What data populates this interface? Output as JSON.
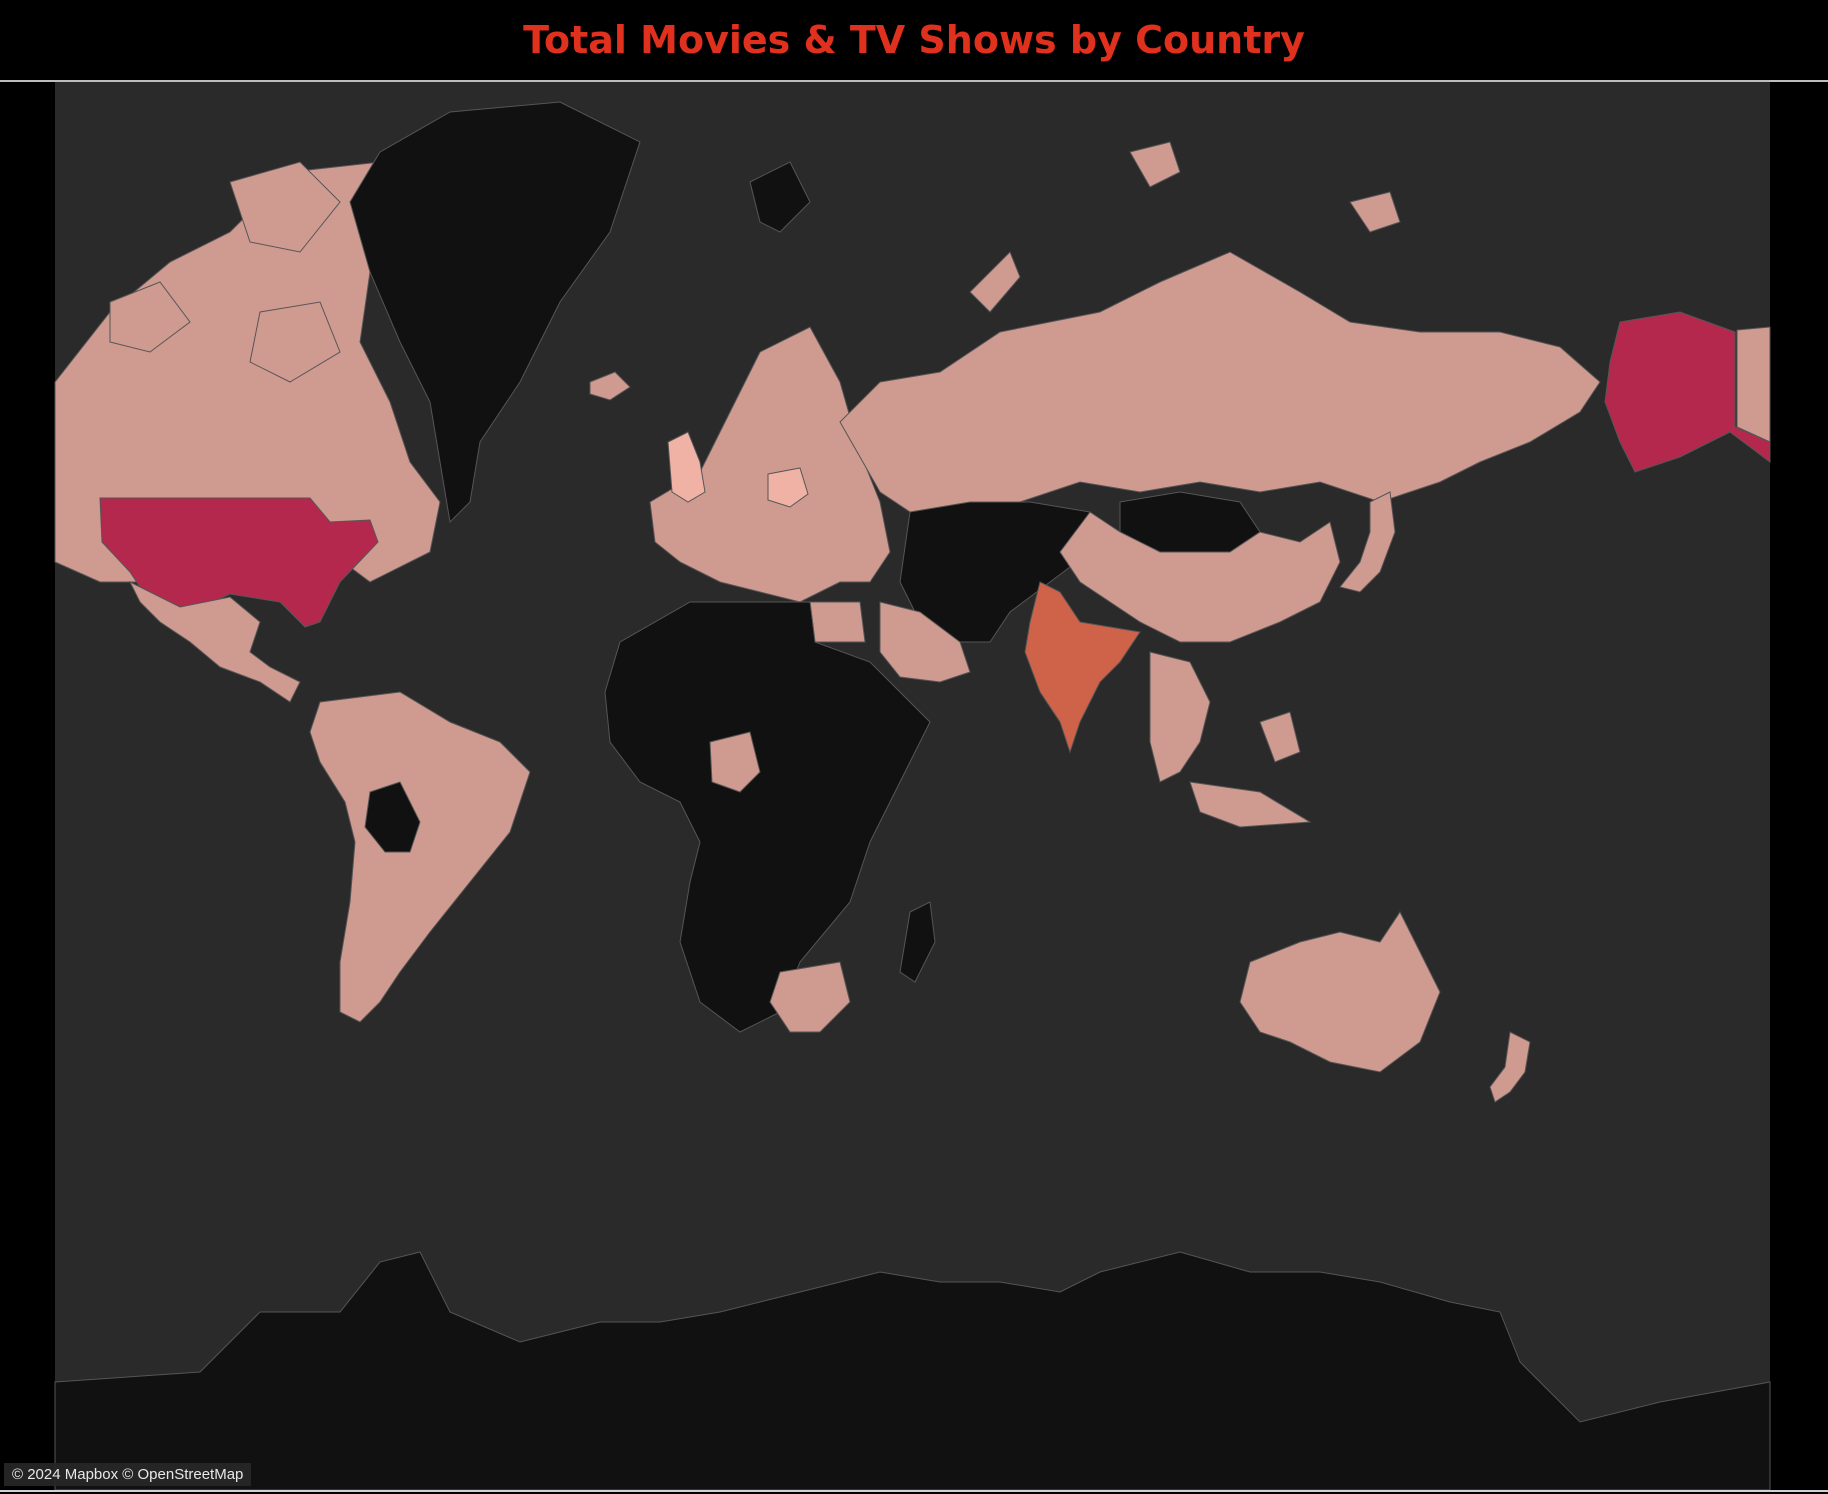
{
  "title": "Total Movies & TV Shows by Country",
  "attribution": "© 2024 Mapbox © OpenStreetMap",
  "colors": {
    "title": "#e0301e",
    "background": "#000000",
    "ocean": "#2a2a2a",
    "no_data": "#111111",
    "low": "#cf9a90",
    "lighter": "#f0b2a5",
    "mid": "#cf634a",
    "high": "#b5284d",
    "border": "#555555"
  },
  "map_data": {
    "type": "choropleth",
    "measure": "Total Movies & TV Shows",
    "regions": [
      {
        "id": "united-states",
        "level": "high"
      },
      {
        "id": "alaska",
        "level": "high"
      },
      {
        "id": "india",
        "level": "mid"
      },
      {
        "id": "united-kingdom",
        "level": "lighter"
      },
      {
        "id": "poland",
        "level": "lighter"
      },
      {
        "id": "canada",
        "level": "low"
      },
      {
        "id": "mexico",
        "level": "low"
      },
      {
        "id": "south-america",
        "level": "low"
      },
      {
        "id": "europe",
        "level": "low"
      },
      {
        "id": "russia",
        "level": "low"
      },
      {
        "id": "china",
        "level": "low"
      },
      {
        "id": "australia",
        "level": "low"
      },
      {
        "id": "south-africa",
        "level": "low"
      },
      {
        "id": "nigeria",
        "level": "low"
      },
      {
        "id": "egypt",
        "level": "low"
      },
      {
        "id": "saudi-arabia",
        "level": "low"
      },
      {
        "id": "japan",
        "level": "low"
      },
      {
        "id": "new-zealand",
        "level": "low"
      },
      {
        "id": "southeast-asia",
        "level": "low"
      },
      {
        "id": "greenland",
        "level": "none"
      },
      {
        "id": "africa",
        "level": "none"
      },
      {
        "id": "central-asia",
        "level": "none"
      },
      {
        "id": "mongolia",
        "level": "none"
      },
      {
        "id": "bolivia",
        "level": "none"
      },
      {
        "id": "antarctica",
        "level": "none"
      }
    ]
  }
}
